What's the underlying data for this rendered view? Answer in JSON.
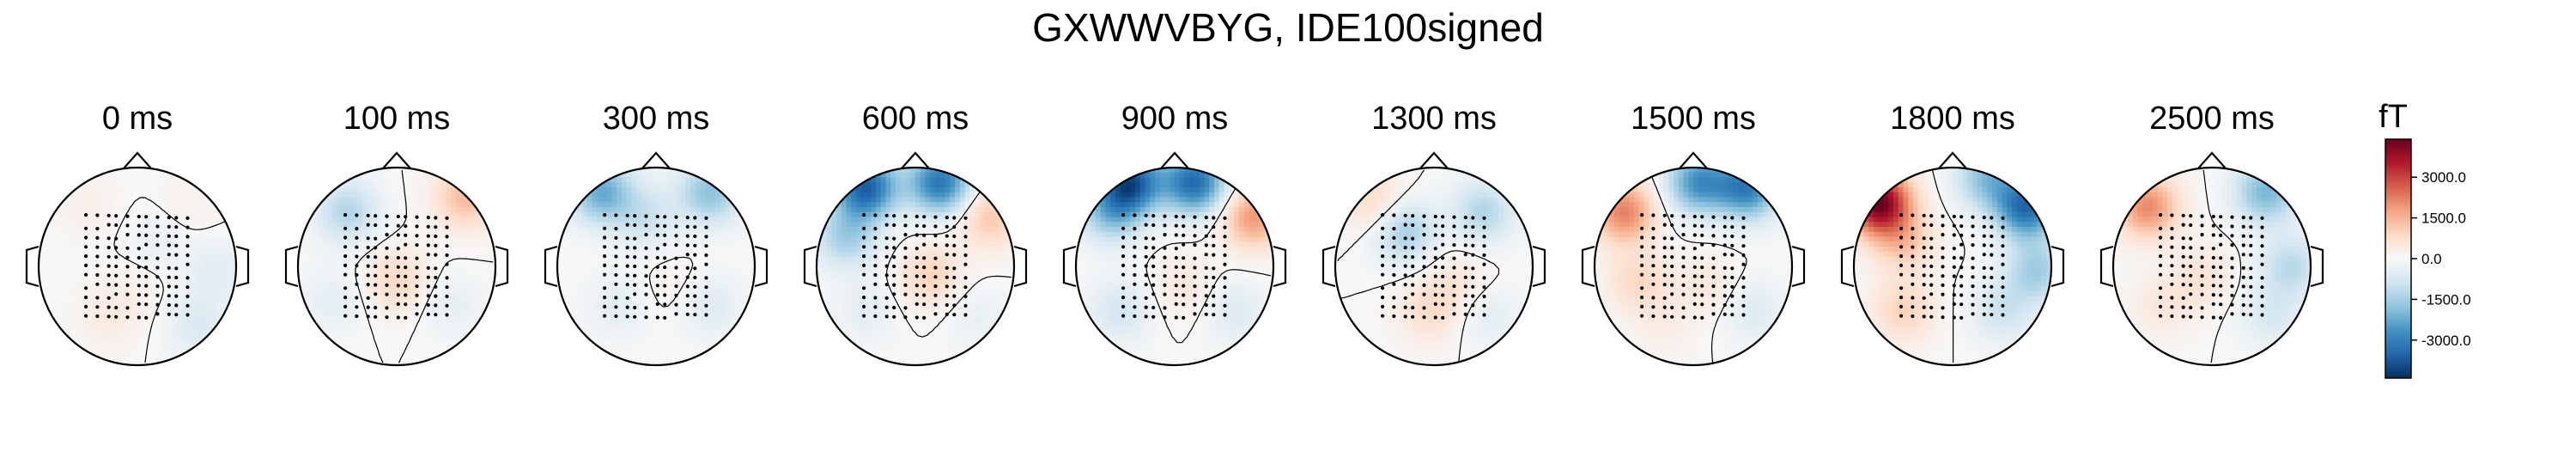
{
  "chart_data": {
    "type": "heatmap",
    "title": "GXWWVBYG, IDE100signed",
    "panels": [
      {
        "label": "0 ms",
        "blobs": [
          {
            "ax": -0.5,
            "ay": -0.6,
            "v": 260
          },
          {
            "ax": 0.5,
            "ay": -0.6,
            "v": 220
          },
          {
            "ax": 0.0,
            "ay": 0.2,
            "v": 200
          },
          {
            "ax": -0.3,
            "ay": 0.5,
            "v": 400
          },
          {
            "ax": 0.8,
            "ay": 0.05,
            "v": -500
          },
          {
            "ax": 0.6,
            "ay": 0.6,
            "v": -650
          },
          {
            "ax": 0.2,
            "ay": -0.25,
            "v": -350
          }
        ]
      },
      {
        "label": "100 ms",
        "blobs": [
          {
            "ax": -0.5,
            "ay": -0.55,
            "v": -1300
          },
          {
            "ax": 0.7,
            "ay": -0.7,
            "v": 1400
          },
          {
            "ax": 0.0,
            "ay": 0.15,
            "v": 900
          },
          {
            "ax": -0.65,
            "ay": 0.35,
            "v": -450
          },
          {
            "ax": 0.55,
            "ay": 0.4,
            "v": -400
          }
        ]
      },
      {
        "label": "300 ms",
        "blobs": [
          {
            "ax": -0.55,
            "ay": -0.75,
            "v": -2200
          },
          {
            "ax": 0.55,
            "ay": -0.75,
            "v": -1800
          },
          {
            "ax": -0.1,
            "ay": -0.5,
            "v": -900
          },
          {
            "ax": 0.2,
            "ay": 0.2,
            "v": 200
          },
          {
            "ax": -0.4,
            "ay": 0.4,
            "v": -450
          },
          {
            "ax": 0.55,
            "ay": 0.4,
            "v": -600
          }
        ]
      },
      {
        "label": "600 ms",
        "blobs": [
          {
            "ax": -0.5,
            "ay": -0.8,
            "v": -3600
          },
          {
            "ax": 0.25,
            "ay": -0.85,
            "v": -3200
          },
          {
            "ax": -0.7,
            "ay": -0.3,
            "v": -1500
          },
          {
            "ax": 0.75,
            "ay": -0.5,
            "v": 1200
          },
          {
            "ax": 0.15,
            "ay": 0.1,
            "v": 1000
          },
          {
            "ax": -0.5,
            "ay": 0.45,
            "v": -450
          },
          {
            "ax": 0.6,
            "ay": 0.5,
            "v": -350
          }
        ]
      },
      {
        "label": "900 ms",
        "blobs": [
          {
            "ax": -0.45,
            "ay": -0.85,
            "v": -3700
          },
          {
            "ax": 0.2,
            "ay": -0.85,
            "v": -3400
          },
          {
            "ax": -0.65,
            "ay": -0.55,
            "v": -1700
          },
          {
            "ax": 0.8,
            "ay": -0.5,
            "v": 1900
          },
          {
            "ax": 0.1,
            "ay": 0.2,
            "v": 500
          },
          {
            "ax": -0.55,
            "ay": 0.45,
            "v": -800
          },
          {
            "ax": 0.6,
            "ay": 0.45,
            "v": -600
          }
        ]
      },
      {
        "label": "1300 ms",
        "blobs": [
          {
            "ax": -0.6,
            "ay": -0.65,
            "v": 900
          },
          {
            "ax": -0.3,
            "ay": -0.35,
            "v": -1500
          },
          {
            "ax": 0.5,
            "ay": -0.55,
            "v": -1300
          },
          {
            "ax": -0.05,
            "ay": 0.45,
            "v": 800
          },
          {
            "ax": 0.25,
            "ay": 0.15,
            "v": 500
          },
          {
            "ax": 0.55,
            "ay": 0.5,
            "v": -500
          }
        ]
      },
      {
        "label": "1500 ms",
        "blobs": [
          {
            "ax": -0.7,
            "ay": -0.55,
            "v": 2200
          },
          {
            "ax": 0.05,
            "ay": -0.85,
            "v": -2600
          },
          {
            "ax": 0.55,
            "ay": -0.8,
            "v": -3000
          },
          {
            "ax": -0.55,
            "ay": 0.15,
            "v": 900
          },
          {
            "ax": 0.15,
            "ay": 0.2,
            "v": 500
          },
          {
            "ax": -0.3,
            "ay": 0.6,
            "v": 300
          },
          {
            "ax": 0.6,
            "ay": 0.45,
            "v": -600
          }
        ]
      },
      {
        "label": "1800 ms",
        "blobs": [
          {
            "ax": -0.75,
            "ay": -0.65,
            "v": 4300
          },
          {
            "ax": -0.5,
            "ay": -0.25,
            "v": 1200
          },
          {
            "ax": 0.75,
            "ay": -0.6,
            "v": -3400
          },
          {
            "ax": 0.35,
            "ay": -0.9,
            "v": -1800
          },
          {
            "ax": 0.85,
            "ay": 0.05,
            "v": -1500
          },
          {
            "ax": -0.5,
            "ay": 0.45,
            "v": 1000
          },
          {
            "ax": 0.5,
            "ay": 0.45,
            "v": -900
          }
        ]
      },
      {
        "label": "2500 ms",
        "blobs": [
          {
            "ax": -0.65,
            "ay": -0.6,
            "v": 2100
          },
          {
            "ax": 0.55,
            "ay": -0.75,
            "v": -2000
          },
          {
            "ax": 0.8,
            "ay": 0.0,
            "v": -1200
          },
          {
            "ax": -0.1,
            "ay": 0.1,
            "v": 600
          },
          {
            "ax": -0.5,
            "ay": 0.4,
            "v": 500
          },
          {
            "ax": 0.6,
            "ay": 0.5,
            "v": -700
          }
        ]
      }
    ],
    "colorbar": {
      "label": "fT",
      "range": [
        -4400,
        4400
      ],
      "ticks": [
        3000,
        1500,
        0,
        -1500,
        -3000
      ],
      "tick_labels": [
        "3000.0",
        "1500.0",
        "0.0",
        "-1500.0",
        "-3000.0"
      ],
      "colormap": "RdBu_r",
      "colors": [
        "#67001f",
        "#b2182b",
        "#d6604d",
        "#f4a582",
        "#fddbc7",
        "#f7f7f7",
        "#d1e5f0",
        "#92c5de",
        "#4393c3",
        "#2166ac",
        "#053061"
      ]
    }
  }
}
